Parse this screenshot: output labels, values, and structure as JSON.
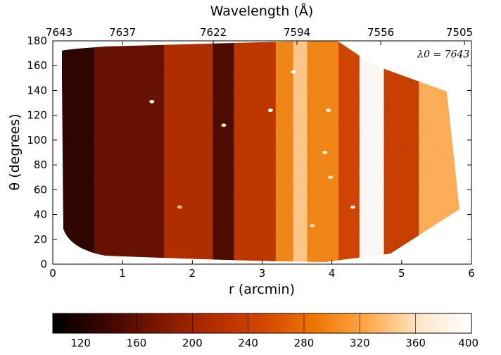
{
  "chart_data": [
    {
      "type": "heatmap",
      "title": "",
      "xlabel": "r (arcmin)",
      "ylabel": "θ (degrees)",
      "xlim": [
        0,
        6
      ],
      "ylim": [
        0,
        180
      ],
      "x_ticks": [
        "0",
        "1",
        "2",
        "3",
        "4",
        "5",
        "6"
      ],
      "y_ticks": [
        "0",
        "20",
        "40",
        "60",
        "80",
        "100",
        "120",
        "140",
        "160",
        "180"
      ],
      "top_axis": {
        "label": "Wavelength (Å)",
        "ticks": [
          {
            "r": 0.0,
            "label": "7643"
          },
          {
            "r": 1.0,
            "label": "7637"
          },
          {
            "r": 2.3,
            "label": "7622"
          },
          {
            "r": 3.5,
            "label": "7594"
          },
          {
            "r": 4.7,
            "label": "7556"
          },
          {
            "r": 5.9,
            "label": "7505"
          }
        ]
      },
      "annotation": {
        "text": "λ0 = 7643",
        "r": 5.6,
        "theta": 170
      },
      "bands": [
        {
          "r_start": 0.0,
          "r_end": 0.6,
          "value": 130
        },
        {
          "r_start": 0.6,
          "r_end": 1.6,
          "value": 165
        },
        {
          "r_start": 1.6,
          "r_end": 2.3,
          "value": 215
        },
        {
          "r_start": 2.3,
          "r_end": 2.6,
          "value": 150
        },
        {
          "r_start": 2.6,
          "r_end": 3.2,
          "value": 230
        },
        {
          "r_start": 3.2,
          "r_end": 3.45,
          "value": 300
        },
        {
          "r_start": 3.45,
          "r_end": 3.65,
          "value": 345
        },
        {
          "r_start": 3.65,
          "r_end": 4.1,
          "value": 300
        },
        {
          "r_start": 4.1,
          "r_end": 4.4,
          "value": 250
        },
        {
          "r_start": 4.4,
          "r_end": 4.75,
          "value": 395
        },
        {
          "r_start": 4.75,
          "r_end": 5.25,
          "value": 240
        },
        {
          "r_start": 5.25,
          "r_end": 5.9,
          "value": 330
        }
      ],
      "hot_spots": [
        {
          "r": 1.42,
          "theta": 131,
          "value": 380
        },
        {
          "r": 3.12,
          "theta": 124,
          "value": 400
        },
        {
          "r": 2.45,
          "theta": 112,
          "value": 360
        },
        {
          "r": 3.95,
          "theta": 124,
          "value": 390
        },
        {
          "r": 3.45,
          "theta": 155,
          "value": 400
        },
        {
          "r": 3.9,
          "theta": 90,
          "value": 370
        },
        {
          "r": 3.98,
          "theta": 70,
          "value": 360
        },
        {
          "r": 1.82,
          "theta": 46,
          "value": 340
        },
        {
          "r": 4.3,
          "theta": 46,
          "value": 380
        },
        {
          "r": 3.72,
          "theta": 31,
          "value": 360
        }
      ]
    },
    {
      "type": "colorbar",
      "range": [
        100,
        400
      ],
      "ticks": [
        "120",
        "160",
        "200",
        "240",
        "280",
        "320",
        "360",
        "400"
      ],
      "colormap": [
        "#000000",
        "#3a0600",
        "#7a1600",
        "#b02c00",
        "#d24600",
        "#ee7600",
        "#ffa848",
        "#ffe6c8",
        "#ffffff"
      ]
    }
  ]
}
